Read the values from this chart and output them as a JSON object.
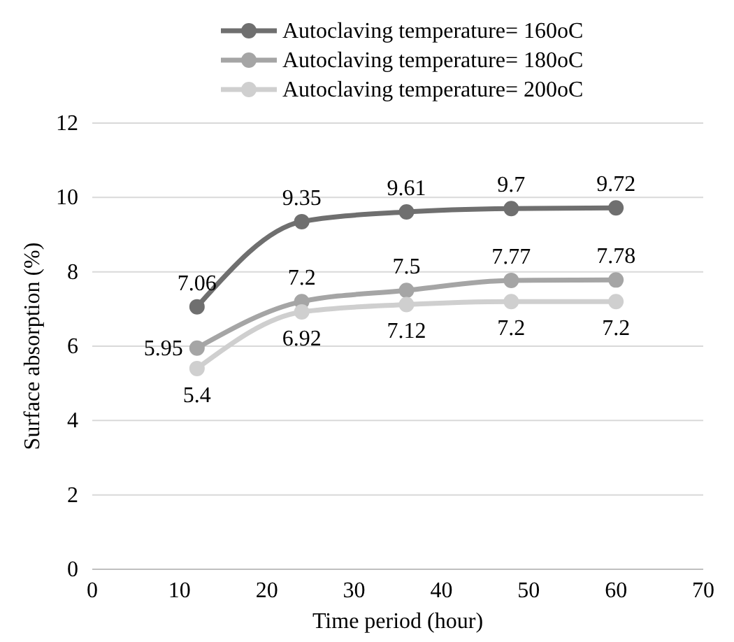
{
  "chart_data": {
    "type": "line",
    "xlabel": "Time period (hour)",
    "ylabel": "Surface absorption (%)",
    "x": [
      12,
      24,
      36,
      48,
      60
    ],
    "series": [
      {
        "name": "Autoclaving temperature= 160oC",
        "color": "#6f6f6f",
        "values": [
          7.06,
          9.35,
          9.61,
          9.7,
          9.72
        ]
      },
      {
        "name": "Autoclaving temperature= 180oC",
        "color": "#a5a5a5",
        "values": [
          5.95,
          7.2,
          7.5,
          7.77,
          7.78
        ]
      },
      {
        "name": "Autoclaving temperature= 200oC",
        "color": "#cfcfcf",
        "values": [
          5.4,
          6.92,
          7.12,
          7.2,
          7.2
        ]
      }
    ],
    "xlim": [
      0,
      70
    ],
    "xticks": [
      0,
      10,
      20,
      30,
      40,
      50,
      60,
      70
    ],
    "ylim": [
      0,
      12
    ],
    "yticks": [
      0,
      2,
      4,
      6,
      8,
      10,
      12
    ],
    "grid": "y",
    "legend": "top",
    "marker": "circle",
    "line_style": "solid",
    "data_labels": true
  }
}
